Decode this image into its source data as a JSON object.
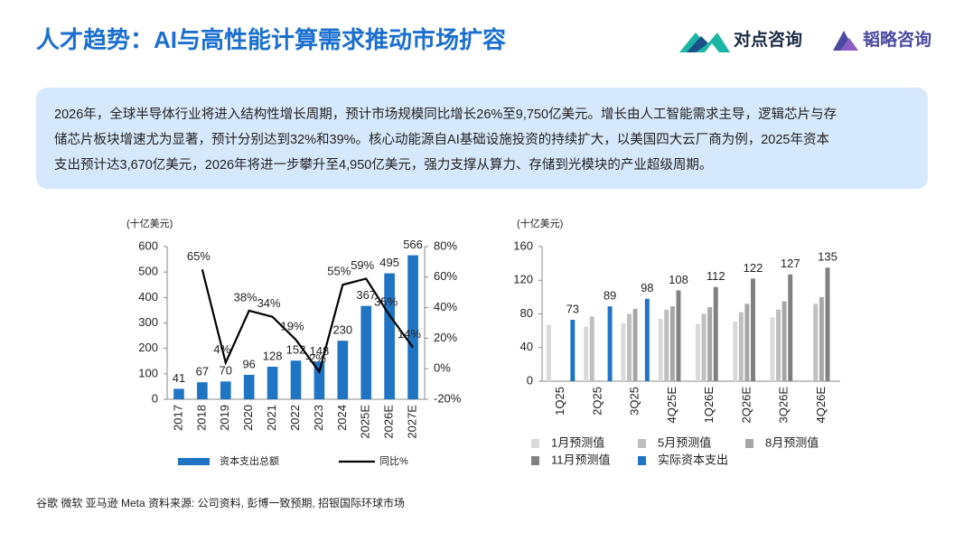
{
  "header": {
    "title": "人才趋势：AI与高性能计算需求推动市场扩容"
  },
  "logos": [
    "对点咨询",
    "韬略咨询"
  ],
  "summary": {
    "lines": [
      "2026年，全球半导体行业将进入结构性增长周期，预计市场规模同比增长26%至9,750亿美元。增长由人工智能需求主导，逻辑芯片与存",
      "储芯片板块增速尤为显著，预计分别达到32%和39%。核心动能源自AI基础设施投资的持续扩大，以美国四大云厂商为例，2025年资本",
      "支出预计达3,670亿美元，2026年将进一步攀升至4,950亿美元，强力支撑从算力、存储到光模块的产业超级周期。"
    ]
  },
  "footer": "谷歌 微软 亚马逊 Meta 资料来源: 公司资料, 彭博一致预期, 招银国际环球市场",
  "chart_data": [
    {
      "type": "bar",
      "unit": "(十亿美元)",
      "categories": [
        "2017",
        "2018",
        "2019",
        "2020",
        "2021",
        "2022",
        "2023",
        "2024",
        "2025E",
        "2026E",
        "2027E"
      ],
      "series": [
        {
          "name": "资本支出总额",
          "color": "#1f74c4",
          "values": [
            41,
            67,
            70,
            96,
            128,
            152,
            148,
            230,
            367,
            495,
            566
          ]
        },
        {
          "name": "同比%",
          "type": "line",
          "axis": "y2",
          "color": "#000000",
          "values": [
            null,
            65,
            4,
            38,
            34,
            19,
            -2,
            55,
            59,
            35,
            14
          ],
          "value_labels": [
            null,
            "65%",
            "4%",
            "38%",
            "34%",
            "19%",
            "-2%",
            "55%",
            "59%",
            "35%",
            "14%"
          ]
        }
      ],
      "ylim": [
        0,
        600
      ],
      "yticks": [
        0,
        100,
        200,
        300,
        400,
        500,
        600
      ],
      "y2lim": [
        -20,
        80
      ],
      "y2ticks": [
        {
          "value": -20,
          "label": "-20%"
        },
        {
          "value": 0,
          "label": "0%"
        },
        {
          "value": 20,
          "label": "20%"
        },
        {
          "value": 40,
          "label": "40%"
        },
        {
          "value": 60,
          "label": "60%"
        },
        {
          "value": 80,
          "label": "80%"
        }
      ],
      "grid": false
    },
    {
      "type": "bar",
      "unit": "(十亿美元)",
      "categories": [
        "1Q25",
        "2Q25",
        "3Q25",
        "4Q25E",
        "1Q26E",
        "2Q26E",
        "3Q26E",
        "4Q26E"
      ],
      "series": [
        {
          "name": "1月预测值",
          "color": "#d9d9d9",
          "values": [
            67,
            65,
            69,
            74,
            68,
            71,
            76,
            null
          ]
        },
        {
          "name": "5月预测值",
          "color": "#bfbfbf",
          "values": [
            null,
            77,
            80,
            85,
            80,
            82,
            85,
            92
          ]
        },
        {
          "name": "8月预测值",
          "color": "#a6a6a6",
          "values": [
            null,
            null,
            86,
            89,
            88,
            92,
            95,
            100
          ]
        },
        {
          "name": "11月预测值",
          "color": "#808080",
          "values": [
            null,
            null,
            null,
            108,
            112,
            122,
            127,
            135
          ]
        },
        {
          "name": "实际资本支出",
          "color": "#1f74c4",
          "values": [
            73,
            89,
            98,
            null,
            null,
            null,
            null,
            null
          ]
        }
      ],
      "ylim": [
        0,
        160
      ],
      "yticks": [
        0,
        40,
        80,
        120,
        160
      ],
      "grid": false
    }
  ]
}
